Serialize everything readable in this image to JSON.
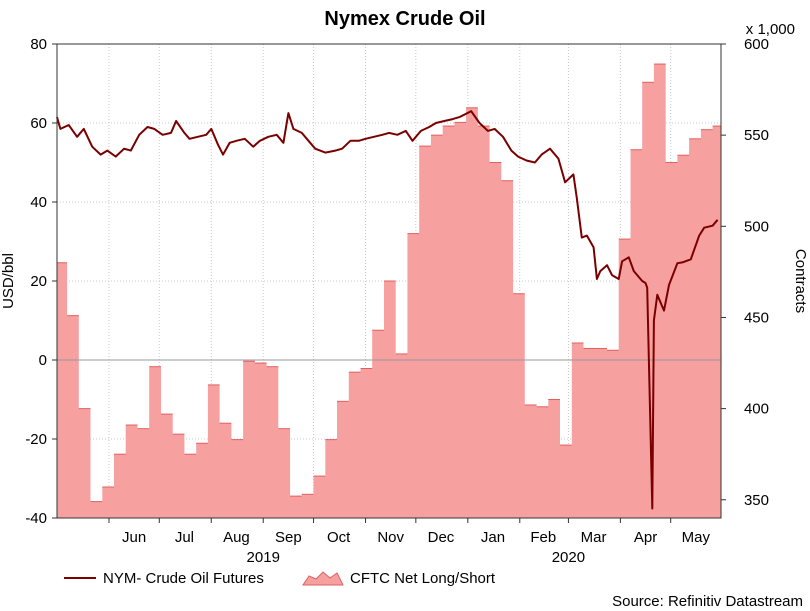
{
  "chart_data": {
    "type": "line",
    "title": "Nymex Crude Oil",
    "ylabel_left": "USD/bbl",
    "ylabel_right": "Contracts",
    "right_axis_multiplier": "x 1,000",
    "ylim_left": [
      -40,
      80
    ],
    "ylim_right": [
      340,
      600
    ],
    "yticks_left": [
      "80",
      "60",
      "40",
      "20",
      "0",
      "-20",
      "-40"
    ],
    "yticks_right": [
      "600",
      "550",
      "500",
      "450",
      "400",
      "350"
    ],
    "x_month_labels": [
      "Jun",
      "Jul",
      "Aug",
      "Sep",
      "Oct",
      "Nov",
      "Dec",
      "Jan",
      "Feb",
      "Mar",
      "Apr",
      "May"
    ],
    "x_year_labels": [
      "2019",
      "2020"
    ],
    "grid": true,
    "legend_placement": "bottom-left",
    "source": "Source: Refinitiv Datastream",
    "colors": {
      "price_line": "#7a0000",
      "positions_fill": "#f7a0a0",
      "positions_edge": "#e06060",
      "zero_line": "#999999"
    },
    "series": [
      {
        "name": "NYM- Crude Oil Futures",
        "axis": "left",
        "kind": "line",
        "points": [
          [
            "2019-05-01",
            61.5
          ],
          [
            "2019-05-03",
            58.5
          ],
          [
            "2019-05-08",
            59.5
          ],
          [
            "2019-05-13",
            56.5
          ],
          [
            "2019-05-17",
            58.5
          ],
          [
            "2019-05-22",
            54.0
          ],
          [
            "2019-05-27",
            52.0
          ],
          [
            "2019-05-31",
            53.0
          ],
          [
            "2019-06-05",
            51.5
          ],
          [
            "2019-06-10",
            53.5
          ],
          [
            "2019-06-14",
            53.0
          ],
          [
            "2019-06-19",
            57.0
          ],
          [
            "2019-06-24",
            59.0
          ],
          [
            "2019-06-28",
            58.5
          ],
          [
            "2019-07-03",
            57.0
          ],
          [
            "2019-07-08",
            57.5
          ],
          [
            "2019-07-11",
            60.5
          ],
          [
            "2019-07-16",
            57.5
          ],
          [
            "2019-07-19",
            56.0
          ],
          [
            "2019-07-24",
            56.5
          ],
          [
            "2019-07-29",
            57.0
          ],
          [
            "2019-08-01",
            58.5
          ],
          [
            "2019-08-05",
            54.5
          ],
          [
            "2019-08-08",
            52.0
          ],
          [
            "2019-08-12",
            55.0
          ],
          [
            "2019-08-16",
            55.5
          ],
          [
            "2019-08-21",
            56.0
          ],
          [
            "2019-08-26",
            54.0
          ],
          [
            "2019-08-30",
            55.5
          ],
          [
            "2019-09-04",
            56.5
          ],
          [
            "2019-09-09",
            57.0
          ],
          [
            "2019-09-13",
            55.0
          ],
          [
            "2019-09-16",
            62.5
          ],
          [
            "2019-09-19",
            58.5
          ],
          [
            "2019-09-24",
            57.5
          ],
          [
            "2019-09-27",
            56.0
          ],
          [
            "2019-10-02",
            53.5
          ],
          [
            "2019-10-08",
            52.5
          ],
          [
            "2019-10-14",
            53.0
          ],
          [
            "2019-10-18",
            53.5
          ],
          [
            "2019-10-23",
            55.5
          ],
          [
            "2019-10-28",
            55.5
          ],
          [
            "2019-11-01",
            56.0
          ],
          [
            "2019-11-06",
            56.5
          ],
          [
            "2019-11-11",
            57.0
          ],
          [
            "2019-11-15",
            57.5
          ],
          [
            "2019-11-20",
            57.0
          ],
          [
            "2019-11-25",
            58.0
          ],
          [
            "2019-11-29",
            55.5
          ],
          [
            "2019-12-04",
            58.0
          ],
          [
            "2019-12-09",
            59.0
          ],
          [
            "2019-12-13",
            60.0
          ],
          [
            "2019-12-18",
            60.5
          ],
          [
            "2019-12-23",
            61.0
          ],
          [
            "2019-12-27",
            61.5
          ],
          [
            "2020-01-03",
            63.0
          ],
          [
            "2020-01-08",
            60.0
          ],
          [
            "2020-01-13",
            58.0
          ],
          [
            "2020-01-17",
            58.5
          ],
          [
            "2020-01-22",
            56.5
          ],
          [
            "2020-01-27",
            53.0
          ],
          [
            "2020-01-31",
            51.5
          ],
          [
            "2020-02-05",
            50.5
          ],
          [
            "2020-02-10",
            50.0
          ],
          [
            "2020-02-14",
            52.0
          ],
          [
            "2020-02-19",
            53.5
          ],
          [
            "2020-02-24",
            51.0
          ],
          [
            "2020-02-28",
            45.0
          ],
          [
            "2020-03-04",
            47.0
          ],
          [
            "2020-03-06",
            41.0
          ],
          [
            "2020-03-09",
            31.0
          ],
          [
            "2020-03-12",
            31.5
          ],
          [
            "2020-03-16",
            28.5
          ],
          [
            "2020-03-18",
            20.5
          ],
          [
            "2020-03-20",
            22.5
          ],
          [
            "2020-03-24",
            24.0
          ],
          [
            "2020-03-27",
            21.5
          ],
          [
            "2020-03-31",
            20.5
          ],
          [
            "2020-04-02",
            25.0
          ],
          [
            "2020-04-06",
            26.0
          ],
          [
            "2020-04-09",
            22.5
          ],
          [
            "2020-04-14",
            20.0
          ],
          [
            "2020-04-16",
            19.5
          ],
          [
            "2020-04-17",
            18.3
          ],
          [
            "2020-04-20",
            -37.6
          ],
          [
            "2020-04-21",
            10.0
          ],
          [
            "2020-04-23",
            16.5
          ],
          [
            "2020-04-27",
            12.5
          ],
          [
            "2020-04-30",
            19.0
          ],
          [
            "2020-05-05",
            24.5
          ],
          [
            "2020-05-08",
            24.7
          ],
          [
            "2020-05-13",
            25.5
          ],
          [
            "2020-05-18",
            31.5
          ],
          [
            "2020-05-21",
            33.5
          ],
          [
            "2020-05-26",
            34.0
          ],
          [
            "2020-05-29",
            35.5
          ]
        ]
      },
      {
        "name": "CFTC Net Long/Short",
        "axis": "right",
        "kind": "area-step",
        "points": [
          [
            "2019-05-01",
            480
          ],
          [
            "2019-05-07",
            451
          ],
          [
            "2019-05-14",
            400
          ],
          [
            "2019-05-21",
            349
          ],
          [
            "2019-05-28",
            357
          ],
          [
            "2019-06-04",
            375
          ],
          [
            "2019-06-11",
            391
          ],
          [
            "2019-06-18",
            389
          ],
          [
            "2019-06-25",
            423
          ],
          [
            "2019-07-02",
            397
          ],
          [
            "2019-07-09",
            386
          ],
          [
            "2019-07-16",
            375
          ],
          [
            "2019-07-23",
            381
          ],
          [
            "2019-07-30",
            413
          ],
          [
            "2019-08-06",
            392
          ],
          [
            "2019-08-13",
            383
          ],
          [
            "2019-08-20",
            426
          ],
          [
            "2019-08-27",
            425
          ],
          [
            "2019-09-03",
            423
          ],
          [
            "2019-09-10",
            389
          ],
          [
            "2019-09-17",
            352
          ],
          [
            "2019-09-24",
            353
          ],
          [
            "2019-10-01",
            363
          ],
          [
            "2019-10-08",
            383
          ],
          [
            "2019-10-15",
            404
          ],
          [
            "2019-10-22",
            420
          ],
          [
            "2019-10-29",
            422
          ],
          [
            "2019-11-05",
            443
          ],
          [
            "2019-11-12",
            470
          ],
          [
            "2019-11-19",
            430
          ],
          [
            "2019-11-26",
            496
          ],
          [
            "2019-12-03",
            544
          ],
          [
            "2019-12-10",
            550
          ],
          [
            "2019-12-17",
            555
          ],
          [
            "2019-12-24",
            557
          ],
          [
            "2019-12-31",
            565
          ],
          [
            "2020-01-07",
            555
          ],
          [
            "2020-01-14",
            535
          ],
          [
            "2020-01-21",
            525
          ],
          [
            "2020-01-28",
            463
          ],
          [
            "2020-02-04",
            402
          ],
          [
            "2020-02-11",
            401
          ],
          [
            "2020-02-18",
            405
          ],
          [
            "2020-02-25",
            380
          ],
          [
            "2020-03-03",
            436
          ],
          [
            "2020-03-10",
            433
          ],
          [
            "2020-03-17",
            433
          ],
          [
            "2020-03-24",
            432
          ],
          [
            "2020-03-31",
            493
          ],
          [
            "2020-04-07",
            542
          ],
          [
            "2020-04-14",
            579
          ],
          [
            "2020-04-21",
            589
          ],
          [
            "2020-04-28",
            535
          ],
          [
            "2020-05-05",
            539
          ],
          [
            "2020-05-12",
            548
          ],
          [
            "2020-05-19",
            553
          ],
          [
            "2020-05-26",
            555
          ]
        ]
      }
    ]
  }
}
